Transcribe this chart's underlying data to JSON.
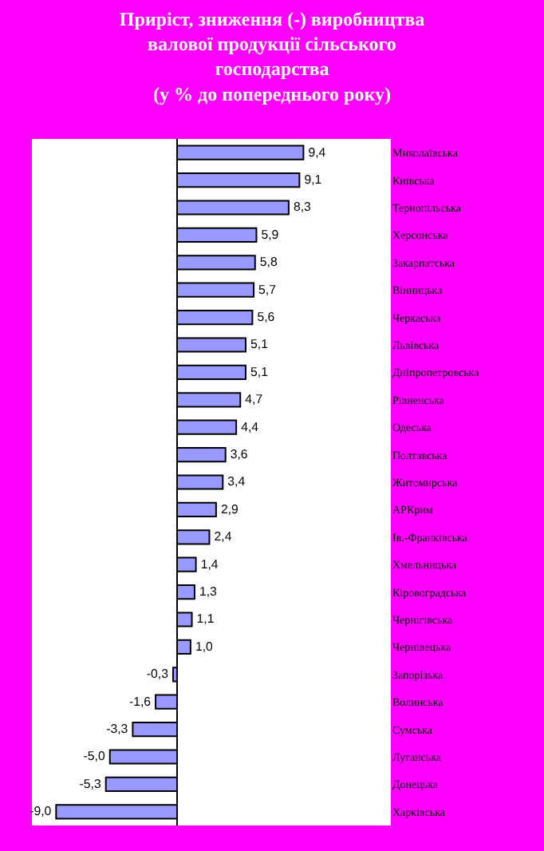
{
  "chart_data": {
    "type": "bar",
    "orientation": "horizontal",
    "title": "Приріст, зниження (-) виробництва\nвалової продукції сільського\nгосподарства\n(у % до попереднього року)",
    "categories": [
      "Миколаївська",
      "Київська",
      "Тернопільська",
      "Херсонська",
      "Закарпатська",
      "Вінницька",
      "Черкаська",
      "Львівська",
      "Дніпропетровська",
      "Рівненська",
      "Одеська",
      "Полтавська",
      "Житомирська",
      "АРКрим",
      "Ів.-Франківська",
      "Хмельницька",
      "Кіровоградська",
      "Чернігівська",
      "Чернівецька",
      "Запорізька",
      "Волинська",
      "Сумська",
      "Луганська",
      "Донецька",
      "Харківська"
    ],
    "values": [
      9.4,
      9.1,
      8.3,
      5.9,
      5.8,
      5.7,
      5.6,
      5.1,
      5.1,
      4.7,
      4.4,
      3.6,
      3.4,
      2.9,
      2.4,
      1.4,
      1.3,
      1.1,
      1.0,
      -0.3,
      -1.6,
      -3.3,
      -5.0,
      -5.3,
      -9.0
    ],
    "value_labels": [
      "9,4",
      "9,1",
      "8,3",
      "5,9",
      "5,8",
      "5,7",
      "5,6",
      "5,1",
      "5,1",
      "4,7",
      "4,4",
      "3,6",
      "3,4",
      "2,9",
      "2,4",
      "1,4",
      "1,3",
      "1,1",
      "1,0",
      "-0,3",
      "-1,6",
      "-3,3",
      "-5,0",
      "-5,3",
      "-9,0"
    ],
    "color": "#9999ff",
    "xlim": [
      -10.8,
      15.9
    ],
    "tick_labels": "y"
  }
}
